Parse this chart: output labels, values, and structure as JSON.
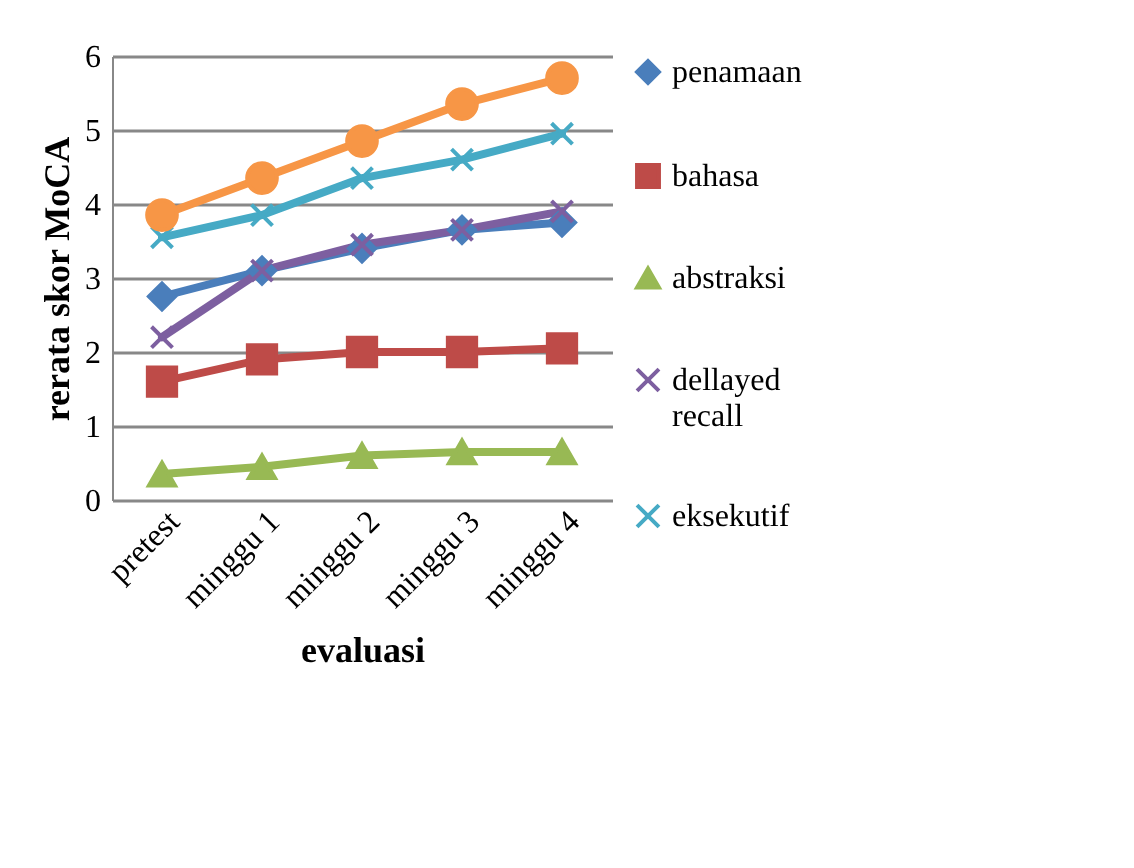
{
  "chart_data": {
    "type": "line",
    "xlabel": "evaluasi",
    "ylabel": "rerata skor MoCA",
    "categories": [
      "pretest",
      "minggu 1",
      "minggu 2",
      "minggu 3",
      "minggu 4"
    ],
    "series": [
      {
        "name": "penamaan",
        "color": "#4a7ebb",
        "marker": "diamond",
        "values": [
          2.75,
          3.1,
          3.4,
          3.65,
          3.75
        ]
      },
      {
        "name": "bahasa",
        "color": "#be4b48",
        "marker": "square",
        "values": [
          1.6,
          1.9,
          2.0,
          2.0,
          2.05
        ]
      },
      {
        "name": "abstraksi",
        "color": "#98b954",
        "marker": "triangle",
        "values": [
          0.35,
          0.45,
          0.6,
          0.65,
          0.65
        ]
      },
      {
        "name": "dellayed recall",
        "color": "#7d5fa0",
        "marker": "cross",
        "values": [
          2.2,
          3.1,
          3.45,
          3.65,
          3.9
        ]
      },
      {
        "name": "eksekutif",
        "color": "#46aac5",
        "marker": "cross",
        "values": [
          3.55,
          3.85,
          4.35,
          4.6,
          4.95
        ]
      },
      {
        "color": "#f79646",
        "marker": "circle",
        "values": [
          3.85,
          4.35,
          4.85,
          5.35,
          5.7
        ]
      }
    ],
    "ylim": [
      0,
      6
    ],
    "yticks": [
      0,
      1,
      2,
      3,
      4,
      5,
      6
    ],
    "grid": "y",
    "legend": "right"
  }
}
